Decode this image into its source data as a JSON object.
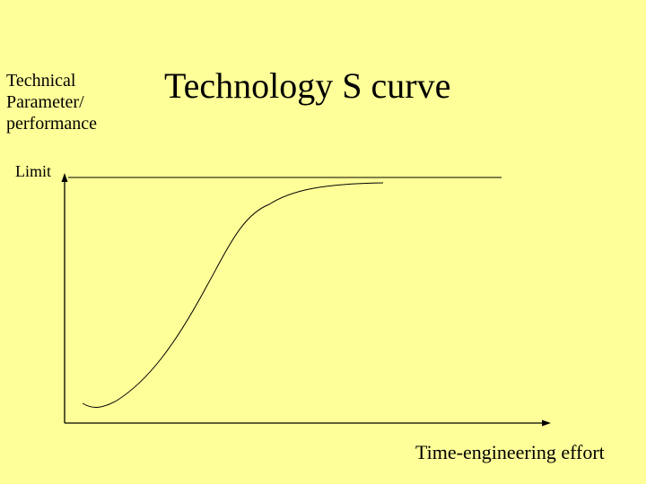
{
  "slide": {
    "title": "Technology S curve",
    "y_axis_label_lines": [
      "Technical",
      "Parameter/",
      "performance"
    ],
    "limit_label": "Limit",
    "x_axis_label": "Time-engineering effort"
  },
  "colors": {
    "background": "#FFFF99",
    "ink": "#000000"
  }
}
